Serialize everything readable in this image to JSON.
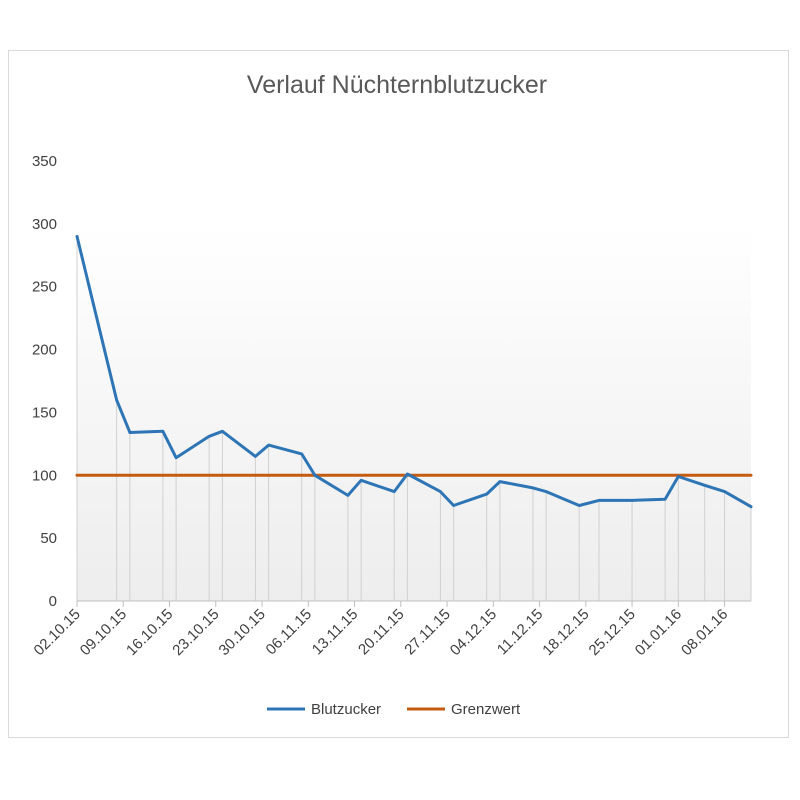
{
  "chart_data": {
    "type": "line",
    "title": "Verlauf Nüchternblutzucker",
    "xlabel": "",
    "ylabel": "",
    "ylim": [
      0,
      350
    ],
    "yticks": [
      0,
      50,
      100,
      150,
      200,
      250,
      300,
      350
    ],
    "x_tick_labels": [
      "02.10.15",
      "09.10.15",
      "16.10.15",
      "23.10.15",
      "30.10.15",
      "06.11.15",
      "13.11.15",
      "20.11.15",
      "27.11.15",
      "04.12.15",
      "11.12.15",
      "18.12.15",
      "25.12.15",
      "01.01.16",
      "08.01.16"
    ],
    "x_range": [
      "2015-10-02",
      "2016-01-12"
    ],
    "legend_position": "bottom",
    "series": [
      {
        "name": "Blutzucker",
        "color": "#2e75b6",
        "points": [
          {
            "x": "2015-10-02",
            "y": 290
          },
          {
            "x": "2015-10-08",
            "y": 160
          },
          {
            "x": "2015-10-10",
            "y": 134
          },
          {
            "x": "2015-10-15",
            "y": 135
          },
          {
            "x": "2015-10-17",
            "y": 114
          },
          {
            "x": "2015-10-22",
            "y": 131
          },
          {
            "x": "2015-10-24",
            "y": 135
          },
          {
            "x": "2015-10-29",
            "y": 115
          },
          {
            "x": "2015-10-31",
            "y": 124
          },
          {
            "x": "2015-11-05",
            "y": 117
          },
          {
            "x": "2015-11-07",
            "y": 100
          },
          {
            "x": "2015-11-12",
            "y": 84
          },
          {
            "x": "2015-11-14",
            "y": 96
          },
          {
            "x": "2015-11-19",
            "y": 87
          },
          {
            "x": "2015-11-21",
            "y": 101
          },
          {
            "x": "2015-11-26",
            "y": 87
          },
          {
            "x": "2015-11-28",
            "y": 76
          },
          {
            "x": "2015-12-03",
            "y": 85
          },
          {
            "x": "2015-12-05",
            "y": 95
          },
          {
            "x": "2015-12-10",
            "y": 90
          },
          {
            "x": "2015-12-12",
            "y": 87
          },
          {
            "x": "2015-12-17",
            "y": 76
          },
          {
            "x": "2015-12-20",
            "y": 80
          },
          {
            "x": "2015-12-25",
            "y": 80
          },
          {
            "x": "2015-12-30",
            "y": 81
          },
          {
            "x": "2016-01-01",
            "y": 99
          },
          {
            "x": "2016-01-05",
            "y": 92
          },
          {
            "x": "2016-01-08",
            "y": 87
          },
          {
            "x": "2016-01-12",
            "y": 75
          }
        ]
      },
      {
        "name": "Grenzwert",
        "color": "#c55a11",
        "points": [
          {
            "x": "2015-10-02",
            "y": 100
          },
          {
            "x": "2016-01-12",
            "y": 100
          }
        ]
      }
    ]
  }
}
